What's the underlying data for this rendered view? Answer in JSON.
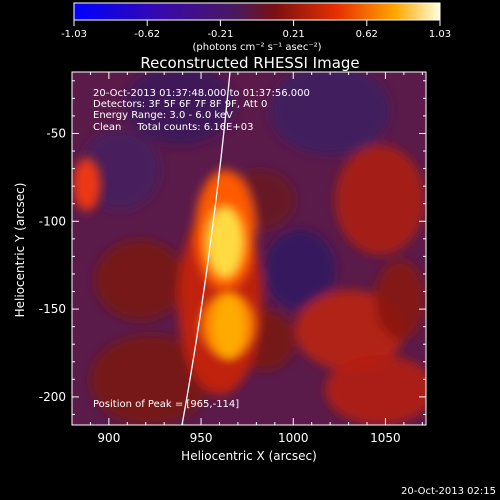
{
  "colorbar": {
    "ticks": [
      "-1.03",
      "-0.62",
      "-0.21",
      "0.21",
      "0.62",
      "1.03"
    ],
    "unit_label": "(photons cm⁻² s⁻¹ asec⁻²)"
  },
  "chart_data": {
    "type": "heatmap",
    "title": "Reconstructed RHESSI Image",
    "xlabel": "Heliocentric X (arcsec)",
    "ylabel": "Heliocentric Y (arcsec)",
    "xlim": [
      880,
      1072
    ],
    "ylim": [
      -216,
      -15
    ],
    "x_ticks": [
      900,
      950,
      1000,
      1050
    ],
    "y_ticks": [
      -50,
      -100,
      -150,
      -200
    ],
    "value_range": [
      -1.03,
      1.03
    ],
    "peak": {
      "x": 965,
      "y": -114
    },
    "sources": [
      {
        "x": 963,
        "y": -112,
        "value": 1.03
      },
      {
        "x": 965,
        "y": -160,
        "value": 0.85
      },
      {
        "x": 888,
        "y": -79,
        "value": 0.55
      }
    ],
    "info": [
      "20-Oct-2013 01:37:48.000 to 01:37:56.000",
      "Detectors: 3F 5F 6F 7F 8F 9F, Att 0",
      "Energy Range: 3.0 - 6.0 keV",
      "Clean     Total counts: 6.16E+03"
    ],
    "peak_label": "Position of Peak = [965,-114]"
  },
  "footer": {
    "timestamp": "20-Oct-2013 02:15"
  }
}
